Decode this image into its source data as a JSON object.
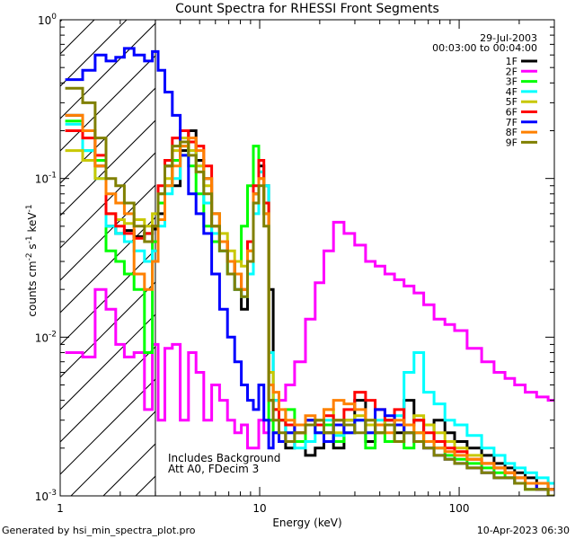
{
  "chart_data": {
    "type": "line",
    "title": "Count Spectra for RHESSI Front Segments",
    "xlabel": "Energy (keV)",
    "ylabel": "counts cm-2 s-1 keV-1",
    "xscale": "log",
    "yscale": "log",
    "xlim": [
      1,
      300
    ],
    "ylim": [
      0.001,
      1
    ],
    "x_ticks": [
      {
        "value": 1,
        "label": "1"
      },
      {
        "value": 10,
        "label": "10"
      },
      {
        "value": 100,
        "label": "100"
      }
    ],
    "y_ticks": [
      {
        "value": 1,
        "mant": "10",
        "exp": "0"
      },
      {
        "value": 0.1,
        "mant": "10",
        "exp": "-1"
      },
      {
        "value": 0.01,
        "mant": "10",
        "exp": "-2"
      },
      {
        "value": 0.001,
        "mant": "10",
        "exp": "-3"
      }
    ],
    "date": "29-Jul-2003",
    "time_range": "00:03:00 to 00:04:00",
    "hatch_energy_max": 3,
    "annotations": [
      "Includes Background",
      "Att A0, FDecim 3"
    ],
    "footer_left": "Generated by hsi_min_spectra_plot.pro",
    "footer_right": "10-Apr-2023 06:30",
    "series": [
      {
        "name": "1F",
        "color": "#000000",
        "x": [
          1.2,
          1.4,
          1.6,
          1.8,
          2.0,
          2.2,
          2.5,
          2.8,
          3.0,
          3.2,
          3.5,
          3.8,
          4.2,
          4.6,
          5.0,
          5.5,
          6.0,
          6.6,
          7.2,
          7.8,
          8.4,
          9.0,
          9.6,
          10.2,
          10.8,
          11.4,
          12.0,
          13,
          14,
          16,
          18,
          20,
          22,
          25,
          28,
          32,
          36,
          40,
          45,
          50,
          56,
          63,
          70,
          80,
          90,
          100,
          120,
          140,
          160,
          180,
          200,
          230,
          260,
          300
        ],
        "y": [
          0.25,
          0.2,
          0.12,
          0.05,
          0.045,
          0.047,
          0.043,
          0.045,
          0.048,
          0.06,
          0.12,
          0.09,
          0.15,
          0.2,
          0.13,
          0.1,
          0.06,
          0.04,
          0.03,
          0.02,
          0.015,
          0.03,
          0.08,
          0.12,
          0.09,
          0.02,
          0.004,
          0.003,
          0.002,
          0.0022,
          0.0018,
          0.002,
          0.0025,
          0.002,
          0.003,
          0.004,
          0.0022,
          0.0028,
          0.003,
          0.0025,
          0.004,
          0.003,
          0.0022,
          0.003,
          0.0025,
          0.0022,
          0.002,
          0.0018,
          0.0016,
          0.0015,
          0.0014,
          0.0013,
          0.0012,
          0.0011
        ]
      },
      {
        "name": "2F",
        "color": "#ff00ff",
        "x": [
          1.2,
          1.4,
          1.6,
          1.8,
          2.0,
          2.2,
          2.5,
          2.8,
          3.0,
          3.2,
          3.5,
          3.8,
          4.2,
          4.6,
          5.0,
          5.5,
          6.0,
          6.6,
          7.2,
          7.8,
          8.4,
          9.0,
          9.6,
          10.2,
          10.8,
          11.4,
          12.0,
          13,
          14,
          16,
          18,
          20,
          22,
          25,
          28,
          32,
          36,
          40,
          45,
          50,
          56,
          63,
          70,
          80,
          90,
          100,
          120,
          140,
          160,
          180,
          200,
          230,
          260,
          300
        ],
        "y": [
          0.008,
          0.0075,
          0.02,
          0.015,
          0.009,
          0.0075,
          0.008,
          0.0035,
          0.009,
          0.003,
          0.0085,
          0.009,
          0.003,
          0.008,
          0.006,
          0.003,
          0.005,
          0.004,
          0.003,
          0.0025,
          0.0028,
          0.002,
          0.002,
          0.003,
          0.0025,
          0.003,
          0.0035,
          0.004,
          0.005,
          0.007,
          0.013,
          0.022,
          0.035,
          0.053,
          0.045,
          0.038,
          0.03,
          0.028,
          0.025,
          0.023,
          0.021,
          0.019,
          0.016,
          0.013,
          0.012,
          0.011,
          0.0085,
          0.007,
          0.006,
          0.0055,
          0.005,
          0.0045,
          0.0042,
          0.004
        ]
      },
      {
        "name": "3F",
        "color": "#00ff00",
        "x": [
          1.2,
          1.4,
          1.6,
          1.8,
          2.0,
          2.2,
          2.5,
          2.8,
          3.0,
          3.2,
          3.5,
          3.8,
          4.2,
          4.6,
          5.0,
          5.5,
          6.0,
          6.6,
          7.2,
          7.8,
          8.4,
          9.0,
          9.6,
          10.2,
          10.8,
          11.4,
          12.0,
          13,
          14,
          16,
          18,
          20,
          22,
          25,
          28,
          32,
          36,
          40,
          45,
          50,
          56,
          63,
          70,
          80,
          90,
          100,
          120,
          140,
          160,
          180,
          200,
          230,
          260,
          300
        ],
        "y": [
          0.23,
          0.15,
          0.13,
          0.035,
          0.03,
          0.025,
          0.02,
          0.008,
          0.04,
          0.07,
          0.09,
          0.13,
          0.16,
          0.12,
          0.08,
          0.05,
          0.04,
          0.035,
          0.025,
          0.03,
          0.05,
          0.09,
          0.16,
          0.11,
          0.06,
          0.003,
          0.0025,
          0.003,
          0.0035,
          0.0022,
          0.003,
          0.0025,
          0.0028,
          0.0022,
          0.0025,
          0.003,
          0.002,
          0.0025,
          0.0022,
          0.0028,
          0.002,
          0.0025,
          0.0022,
          0.002,
          0.0018,
          0.0017,
          0.0016,
          0.0015,
          0.0014,
          0.0013,
          0.0012,
          0.0011,
          0.0011,
          0.001
        ]
      },
      {
        "name": "4F",
        "color": "#00ffff",
        "x": [
          1.2,
          1.4,
          1.6,
          1.8,
          2.0,
          2.2,
          2.5,
          2.8,
          3.0,
          3.2,
          3.5,
          3.8,
          4.2,
          4.6,
          5.0,
          5.5,
          6.0,
          6.6,
          7.2,
          7.8,
          8.4,
          9.0,
          9.6,
          10.2,
          10.8,
          11.4,
          12.0,
          13,
          14,
          16,
          18,
          20,
          22,
          25,
          28,
          32,
          36,
          40,
          45,
          50,
          56,
          63,
          70,
          80,
          90,
          100,
          120,
          140,
          160,
          180,
          200,
          230,
          260,
          300
        ],
        "y": [
          0.22,
          0.15,
          0.1,
          0.05,
          0.045,
          0.04,
          0.035,
          0.03,
          0.035,
          0.05,
          0.08,
          0.1,
          0.14,
          0.15,
          0.12,
          0.07,
          0.045,
          0.035,
          0.025,
          0.02,
          0.018,
          0.025,
          0.06,
          0.11,
          0.09,
          0.008,
          0.004,
          0.003,
          0.0025,
          0.002,
          0.0022,
          0.0025,
          0.003,
          0.0024,
          0.0028,
          0.003,
          0.0025,
          0.003,
          0.0028,
          0.0032,
          0.006,
          0.008,
          0.0045,
          0.0038,
          0.003,
          0.0028,
          0.0024,
          0.002,
          0.0018,
          0.0016,
          0.0015,
          0.0014,
          0.0013,
          0.0012
        ]
      },
      {
        "name": "5F",
        "color": "#c8c800",
        "x": [
          1.2,
          1.4,
          1.6,
          1.8,
          2.0,
          2.2,
          2.5,
          2.8,
          3.0,
          3.2,
          3.5,
          3.8,
          4.2,
          4.6,
          5.0,
          5.5,
          6.0,
          6.6,
          7.2,
          7.8,
          8.4,
          9.0,
          9.6,
          10.2,
          10.8,
          11.4,
          12.0,
          13,
          14,
          16,
          18,
          20,
          22,
          25,
          28,
          32,
          36,
          40,
          45,
          50,
          56,
          63,
          70,
          80,
          90,
          100,
          120,
          140,
          160,
          180,
          200,
          230,
          260,
          300
        ],
        "y": [
          0.15,
          0.13,
          0.1,
          0.06,
          0.055,
          0.052,
          0.055,
          0.05,
          0.06,
          0.08,
          0.1,
          0.15,
          0.18,
          0.15,
          0.12,
          0.09,
          0.06,
          0.045,
          0.035,
          0.03,
          0.028,
          0.035,
          0.07,
          0.1,
          0.07,
          0.006,
          0.0035,
          0.003,
          0.0028,
          0.0025,
          0.0028,
          0.003,
          0.0035,
          0.0025,
          0.003,
          0.0032,
          0.0028,
          0.0025,
          0.003,
          0.0028,
          0.0025,
          0.0032,
          0.0028,
          0.0025,
          0.0022,
          0.002,
          0.0018,
          0.0016,
          0.0015,
          0.0014,
          0.0013,
          0.0012,
          0.0011,
          0.0011
        ]
      },
      {
        "name": "6F",
        "color": "#ff0000",
        "x": [
          1.2,
          1.4,
          1.6,
          1.8,
          2.0,
          2.2,
          2.5,
          2.8,
          3.0,
          3.2,
          3.5,
          3.8,
          4.2,
          4.6,
          5.0,
          5.5,
          6.0,
          6.6,
          7.2,
          7.8,
          8.4,
          9.0,
          9.6,
          10.2,
          10.8,
          11.4,
          12.0,
          13,
          14,
          16,
          18,
          20,
          22,
          25,
          28,
          32,
          36,
          40,
          45,
          50,
          56,
          63,
          70,
          80,
          90,
          100,
          120,
          140,
          160,
          180,
          200,
          230,
          260,
          300
        ],
        "y": [
          0.2,
          0.18,
          0.14,
          0.06,
          0.05,
          0.045,
          0.042,
          0.045,
          0.05,
          0.09,
          0.13,
          0.18,
          0.2,
          0.17,
          0.16,
          0.12,
          0.05,
          0.04,
          0.03,
          0.025,
          0.02,
          0.04,
          0.09,
          0.13,
          0.07,
          0.004,
          0.0035,
          0.003,
          0.0028,
          0.0025,
          0.003,
          0.0028,
          0.0032,
          0.003,
          0.0035,
          0.0045,
          0.004,
          0.0035,
          0.003,
          0.0035,
          0.0028,
          0.003,
          0.0025,
          0.0022,
          0.002,
          0.0019,
          0.0017,
          0.0016,
          0.0015,
          0.0014,
          0.0013,
          0.0012,
          0.0011,
          0.0011
        ]
      },
      {
        "name": "7F",
        "color": "#0000ff",
        "x": [
          1.2,
          1.4,
          1.6,
          1.8,
          2.0,
          2.2,
          2.5,
          2.8,
          3.0,
          3.2,
          3.5,
          3.8,
          4.2,
          4.6,
          5.0,
          5.5,
          6.0,
          6.6,
          7.2,
          7.8,
          8.4,
          9.0,
          9.6,
          10.2,
          10.8,
          11.4,
          12.0,
          13,
          14,
          16,
          18,
          20,
          22,
          25,
          28,
          32,
          36,
          40,
          45,
          50,
          56,
          63,
          70,
          80,
          90,
          100,
          120,
          140,
          160,
          180,
          200,
          230,
          260,
          300
        ],
        "y": [
          0.42,
          0.48,
          0.6,
          0.55,
          0.58,
          0.66,
          0.6,
          0.55,
          0.63,
          0.48,
          0.35,
          0.25,
          0.14,
          0.08,
          0.06,
          0.045,
          0.025,
          0.015,
          0.01,
          0.007,
          0.005,
          0.004,
          0.0035,
          0.005,
          0.003,
          0.002,
          0.0025,
          0.0022,
          0.0025,
          0.0028,
          0.003,
          0.0025,
          0.0022,
          0.0028,
          0.0025,
          0.003,
          0.0025,
          0.0035,
          0.0032,
          0.0028,
          0.0025,
          0.0022,
          0.002,
          0.0018,
          0.0017,
          0.0016,
          0.0015,
          0.0014,
          0.0013,
          0.0013,
          0.0012,
          0.0012,
          0.0011,
          0.0011
        ]
      },
      {
        "name": "8F",
        "color": "#ff8000",
        "x": [
          1.2,
          1.4,
          1.6,
          1.8,
          2.0,
          2.2,
          2.5,
          2.8,
          3.0,
          3.2,
          3.5,
          3.8,
          4.2,
          4.6,
          5.0,
          5.5,
          6.0,
          6.6,
          7.2,
          7.8,
          8.4,
          9.0,
          9.6,
          10.2,
          10.8,
          11.4,
          12.0,
          13,
          14,
          16,
          18,
          20,
          22,
          25,
          28,
          32,
          36,
          40,
          45,
          50,
          56,
          63,
          70,
          80,
          90,
          100,
          120,
          140,
          160,
          180,
          200,
          230,
          260,
          300
        ],
        "y": [
          0.25,
          0.2,
          0.12,
          0.08,
          0.07,
          0.06,
          0.025,
          0.02,
          0.03,
          0.055,
          0.09,
          0.12,
          0.16,
          0.18,
          0.15,
          0.1,
          0.06,
          0.04,
          0.03,
          0.025,
          0.02,
          0.035,
          0.08,
          0.1,
          0.06,
          0.005,
          0.0045,
          0.0035,
          0.003,
          0.0028,
          0.0032,
          0.003,
          0.0035,
          0.004,
          0.0038,
          0.0035,
          0.003,
          0.0028,
          0.0025,
          0.003,
          0.0028,
          0.0025,
          0.0022,
          0.002,
          0.0019,
          0.0018,
          0.0017,
          0.0016,
          0.0015,
          0.0014,
          0.0013,
          0.0012,
          0.0012,
          0.0011
        ]
      },
      {
        "name": "9F",
        "color": "#808000",
        "x": [
          1.2,
          1.4,
          1.6,
          1.8,
          2.0,
          2.2,
          2.5,
          2.8,
          3.0,
          3.2,
          3.5,
          3.8,
          4.2,
          4.6,
          5.0,
          5.5,
          6.0,
          6.6,
          7.2,
          7.8,
          8.4,
          9.0,
          9.6,
          10.2,
          10.8,
          11.4,
          12.0,
          13,
          14,
          16,
          18,
          20,
          22,
          25,
          28,
          32,
          36,
          40,
          45,
          50,
          56,
          63,
          70,
          80,
          90,
          100,
          120,
          140,
          160,
          180,
          200,
          230,
          260,
          300
        ],
        "y": [
          0.37,
          0.3,
          0.18,
          0.1,
          0.09,
          0.07,
          0.05,
          0.04,
          0.05,
          0.08,
          0.12,
          0.16,
          0.17,
          0.14,
          0.11,
          0.08,
          0.05,
          0.035,
          0.025,
          0.02,
          0.018,
          0.03,
          0.07,
          0.09,
          0.05,
          0.004,
          0.003,
          0.0025,
          0.0022,
          0.0025,
          0.0028,
          0.003,
          0.0025,
          0.003,
          0.0028,
          0.0025,
          0.003,
          0.0025,
          0.0028,
          0.0022,
          0.0025,
          0.0022,
          0.002,
          0.0018,
          0.0017,
          0.0016,
          0.0015,
          0.0014,
          0.0013,
          0.0013,
          0.0012,
          0.0011,
          0.0011,
          0.001
        ]
      }
    ]
  }
}
